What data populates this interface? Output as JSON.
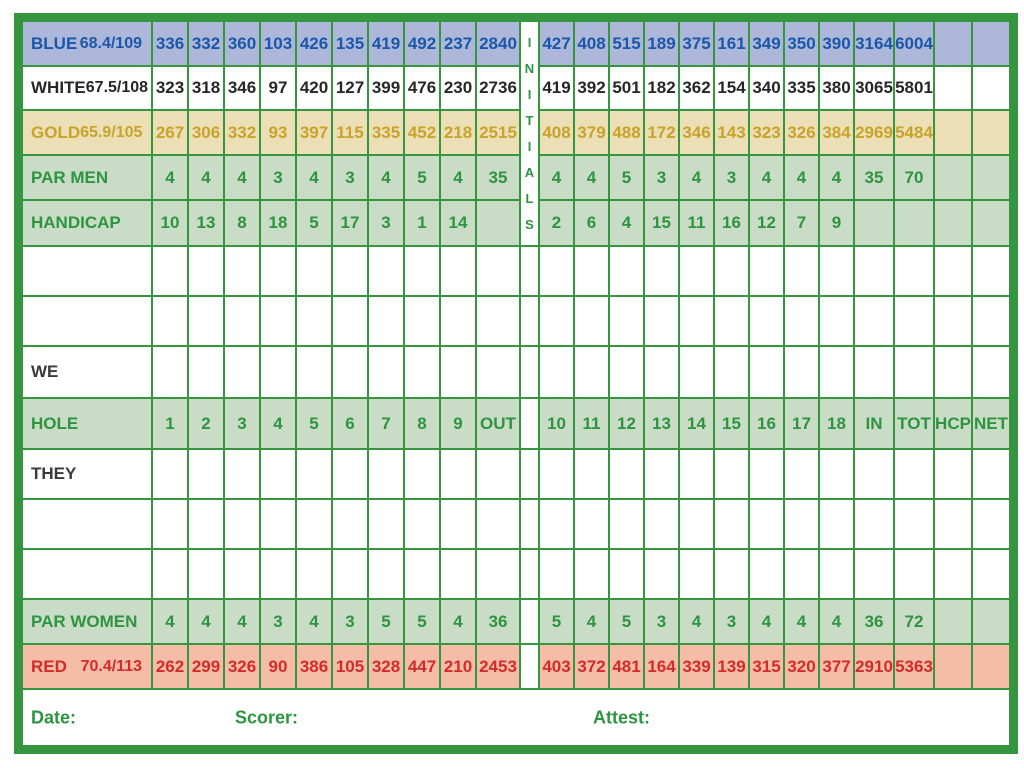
{
  "scorecard": {
    "initials_label": "INITIALS",
    "footer": {
      "date_label": "Date:",
      "scorer_label": "Scorer:",
      "attest_label": "Attest:"
    },
    "colors": {
      "grid_green": "#36953f",
      "green_text": "#2e9440",
      "green_row_bg": "#c9dcc6",
      "blue_row_bg": "#adb7da",
      "blue_text": "#1b57a8",
      "gold_row_bg": "#ecdfb6",
      "gold_text": "#c8a329",
      "red_row_bg": "#f5bda8",
      "red_text": "#d32b28"
    },
    "rows": [
      {
        "id": "blue",
        "style": "blue",
        "label": "BLUE",
        "rating": "68.4/109",
        "front": [
          "336",
          "332",
          "360",
          "103",
          "426",
          "135",
          "419",
          "492",
          "237"
        ],
        "out": "2840",
        "back": [
          "427",
          "408",
          "515",
          "189",
          "375",
          "161",
          "349",
          "350",
          "390"
        ],
        "in": "3164",
        "tot": "6004",
        "hcp": "",
        "net": ""
      },
      {
        "id": "white",
        "style": "white",
        "label": "WHITE",
        "rating": "67.5/108",
        "front": [
          "323",
          "318",
          "346",
          "97",
          "420",
          "127",
          "399",
          "476",
          "230"
        ],
        "out": "2736",
        "back": [
          "419",
          "392",
          "501",
          "182",
          "362",
          "154",
          "340",
          "335",
          "380"
        ],
        "in": "3065",
        "tot": "5801",
        "hcp": "",
        "net": ""
      },
      {
        "id": "gold",
        "style": "gold",
        "label": "GOLD",
        "rating": "65.9/105",
        "front": [
          "267",
          "306",
          "332",
          "93",
          "397",
          "115",
          "335",
          "452",
          "218"
        ],
        "out": "2515",
        "back": [
          "408",
          "379",
          "488",
          "172",
          "346",
          "143",
          "323",
          "326",
          "384"
        ],
        "in": "2969",
        "tot": "5484",
        "hcp": "",
        "net": ""
      },
      {
        "id": "par-men",
        "style": "green",
        "label": "PAR MEN",
        "rating": "",
        "front": [
          "4",
          "4",
          "4",
          "3",
          "4",
          "3",
          "4",
          "5",
          "4"
        ],
        "out": "35",
        "back": [
          "4",
          "4",
          "5",
          "3",
          "4",
          "3",
          "4",
          "4",
          "4"
        ],
        "in": "35",
        "tot": "70",
        "hcp": "",
        "net": ""
      },
      {
        "id": "handicap",
        "style": "green",
        "label": "HANDICAP",
        "rating": "",
        "front": [
          "10",
          "13",
          "8",
          "18",
          "5",
          "17",
          "3",
          "1",
          "14"
        ],
        "out": "",
        "back": [
          "2",
          "6",
          "4",
          "15",
          "11",
          "16",
          "12",
          "7",
          "9"
        ],
        "in": "",
        "tot": "",
        "hcp": "",
        "net": ""
      },
      {
        "id": "blank-1",
        "style": "entry",
        "label": "",
        "rating": "",
        "front": [
          "",
          "",
          "",
          "",
          "",
          "",
          "",
          "",
          ""
        ],
        "out": "",
        "back": [
          "",
          "",
          "",
          "",
          "",
          "",
          "",
          "",
          ""
        ],
        "in": "",
        "tot": "",
        "hcp": "",
        "net": ""
      },
      {
        "id": "blank-2",
        "style": "entry",
        "label": "",
        "rating": "",
        "front": [
          "",
          "",
          "",
          "",
          "",
          "",
          "",
          "",
          ""
        ],
        "out": "",
        "back": [
          "",
          "",
          "",
          "",
          "",
          "",
          "",
          "",
          ""
        ],
        "in": "",
        "tot": "",
        "hcp": "",
        "net": ""
      },
      {
        "id": "we",
        "style": "entry",
        "label": "WE",
        "rating": "",
        "front": [
          "",
          "",
          "",
          "",
          "",
          "",
          "",
          "",
          ""
        ],
        "out": "",
        "back": [
          "",
          "",
          "",
          "",
          "",
          "",
          "",
          "",
          ""
        ],
        "in": "",
        "tot": "",
        "hcp": "",
        "net": ""
      },
      {
        "id": "hole",
        "style": "green",
        "label": "HOLE",
        "rating": "",
        "front": [
          "1",
          "2",
          "3",
          "4",
          "5",
          "6",
          "7",
          "8",
          "9"
        ],
        "out": "OUT",
        "back": [
          "10",
          "11",
          "12",
          "13",
          "14",
          "15",
          "16",
          "17",
          "18"
        ],
        "in": "IN",
        "tot": "TOT",
        "hcp": "HCP",
        "net": "NET"
      },
      {
        "id": "they",
        "style": "entry",
        "label": "THEY",
        "rating": "",
        "front": [
          "",
          "",
          "",
          "",
          "",
          "",
          "",
          "",
          ""
        ],
        "out": "",
        "back": [
          "",
          "",
          "",
          "",
          "",
          "",
          "",
          "",
          ""
        ],
        "in": "",
        "tot": "",
        "hcp": "",
        "net": ""
      },
      {
        "id": "blank-3",
        "style": "entry",
        "label": "",
        "rating": "",
        "front": [
          "",
          "",
          "",
          "",
          "",
          "",
          "",
          "",
          ""
        ],
        "out": "",
        "back": [
          "",
          "",
          "",
          "",
          "",
          "",
          "",
          "",
          ""
        ],
        "in": "",
        "tot": "",
        "hcp": "",
        "net": ""
      },
      {
        "id": "blank-4",
        "style": "entry",
        "label": "",
        "rating": "",
        "front": [
          "",
          "",
          "",
          "",
          "",
          "",
          "",
          "",
          ""
        ],
        "out": "",
        "back": [
          "",
          "",
          "",
          "",
          "",
          "",
          "",
          "",
          ""
        ],
        "in": "",
        "tot": "",
        "hcp": "",
        "net": ""
      },
      {
        "id": "par-women",
        "style": "green",
        "label": "PAR WOMEN",
        "rating": "",
        "front": [
          "4",
          "4",
          "4",
          "3",
          "4",
          "3",
          "5",
          "5",
          "4"
        ],
        "out": "36",
        "back": [
          "5",
          "4",
          "5",
          "3",
          "4",
          "3",
          "4",
          "4",
          "4"
        ],
        "in": "36",
        "tot": "72",
        "hcp": "",
        "net": ""
      },
      {
        "id": "red",
        "style": "red",
        "label": "RED",
        "rating": "70.4/113",
        "front": [
          "262",
          "299",
          "326",
          "90",
          "386",
          "105",
          "328",
          "447",
          "210"
        ],
        "out": "2453",
        "back": [
          "403",
          "372",
          "481",
          "164",
          "339",
          "139",
          "315",
          "320",
          "377"
        ],
        "in": "2910",
        "tot": "5363",
        "hcp": "",
        "net": ""
      }
    ]
  }
}
